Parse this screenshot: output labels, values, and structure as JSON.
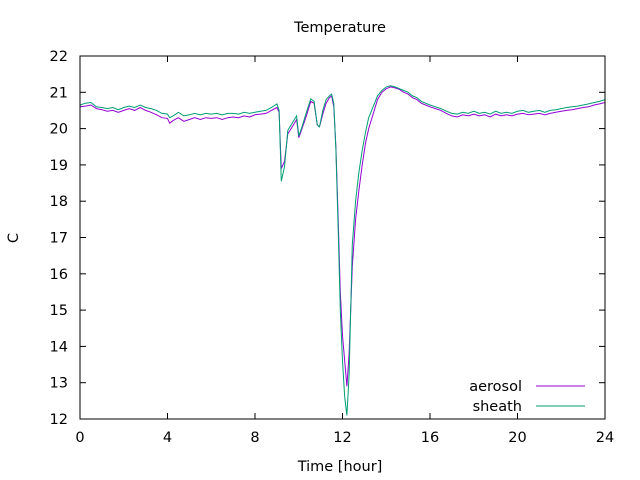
{
  "chart_data": {
    "type": "line",
    "title": "Temperature",
    "xlabel": "Time [hour]",
    "ylabel": "C",
    "xlim": [
      0,
      24
    ],
    "ylim": [
      12,
      22
    ],
    "xticks": [
      0,
      4,
      8,
      12,
      16,
      20,
      24
    ],
    "yticks": [
      12,
      13,
      14,
      15,
      16,
      17,
      18,
      19,
      20,
      21,
      22
    ],
    "grid": false,
    "legend_position": "bottom-right",
    "series": [
      {
        "name": "aerosol",
        "color": "#9400d3",
        "points": [
          [
            0,
            20.6
          ],
          [
            0.25,
            20.62
          ],
          [
            0.5,
            20.65
          ],
          [
            0.75,
            20.55
          ],
          [
            1,
            20.52
          ],
          [
            1.25,
            20.48
          ],
          [
            1.5,
            20.5
          ],
          [
            1.75,
            20.45
          ],
          [
            2,
            20.5
          ],
          [
            2.25,
            20.55
          ],
          [
            2.5,
            20.5
          ],
          [
            2.75,
            20.58
          ],
          [
            3,
            20.5
          ],
          [
            3.25,
            20.45
          ],
          [
            3.5,
            20.38
          ],
          [
            3.75,
            20.3
          ],
          [
            4,
            20.28
          ],
          [
            4.1,
            20.15
          ],
          [
            4.25,
            20.22
          ],
          [
            4.5,
            20.3
          ],
          [
            4.75,
            20.2
          ],
          [
            5,
            20.25
          ],
          [
            5.25,
            20.3
          ],
          [
            5.5,
            20.25
          ],
          [
            5.75,
            20.3
          ],
          [
            6,
            20.28
          ],
          [
            6.25,
            20.3
          ],
          [
            6.5,
            20.25
          ],
          [
            6.75,
            20.3
          ],
          [
            7,
            20.32
          ],
          [
            7.25,
            20.3
          ],
          [
            7.5,
            20.35
          ],
          [
            7.75,
            20.32
          ],
          [
            8,
            20.38
          ],
          [
            8.25,
            20.4
          ],
          [
            8.5,
            20.42
          ],
          [
            8.75,
            20.5
          ],
          [
            9,
            20.58
          ],
          [
            9.1,
            20.45
          ],
          [
            9.2,
            18.9
          ],
          [
            9.35,
            19.1
          ],
          [
            9.5,
            19.85
          ],
          [
            9.75,
            20.1
          ],
          [
            9.9,
            20.25
          ],
          [
            10.0,
            19.75
          ],
          [
            10.15,
            20.0
          ],
          [
            10.35,
            20.35
          ],
          [
            10.55,
            20.75
          ],
          [
            10.7,
            20.7
          ],
          [
            10.85,
            20.1
          ],
          [
            10.95,
            20.05
          ],
          [
            11.1,
            20.4
          ],
          [
            11.25,
            20.7
          ],
          [
            11.4,
            20.85
          ],
          [
            11.5,
            20.9
          ],
          [
            11.6,
            20.6
          ],
          [
            11.7,
            19.5
          ],
          [
            11.8,
            17.6
          ],
          [
            11.9,
            15.5
          ],
          [
            12.0,
            14.3
          ],
          [
            12.1,
            13.6
          ],
          [
            12.2,
            12.9
          ],
          [
            12.3,
            13.8
          ],
          [
            12.45,
            16.2
          ],
          [
            12.6,
            17.5
          ],
          [
            12.75,
            18.3
          ],
          [
            12.9,
            19.0
          ],
          [
            13.05,
            19.6
          ],
          [
            13.2,
            20.0
          ],
          [
            13.4,
            20.4
          ],
          [
            13.6,
            20.8
          ],
          [
            13.8,
            21.0
          ],
          [
            14.0,
            21.1
          ],
          [
            14.2,
            21.15
          ],
          [
            14.4,
            21.12
          ],
          [
            14.6,
            21.08
          ],
          [
            14.8,
            21.0
          ],
          [
            15.0,
            20.95
          ],
          [
            15.2,
            20.85
          ],
          [
            15.4,
            20.8
          ],
          [
            15.6,
            20.7
          ],
          [
            15.8,
            20.65
          ],
          [
            16.0,
            20.6
          ],
          [
            16.25,
            20.55
          ],
          [
            16.5,
            20.5
          ],
          [
            16.75,
            20.42
          ],
          [
            17.0,
            20.35
          ],
          [
            17.25,
            20.32
          ],
          [
            17.5,
            20.38
          ],
          [
            17.75,
            20.35
          ],
          [
            18.0,
            20.4
          ],
          [
            18.25,
            20.35
          ],
          [
            18.5,
            20.38
          ],
          [
            18.75,
            20.32
          ],
          [
            19.0,
            20.4
          ],
          [
            19.25,
            20.35
          ],
          [
            19.5,
            20.38
          ],
          [
            19.75,
            20.35
          ],
          [
            20.0,
            20.4
          ],
          [
            20.25,
            20.42
          ],
          [
            20.5,
            20.38
          ],
          [
            20.75,
            20.4
          ],
          [
            21.0,
            20.42
          ],
          [
            21.25,
            20.38
          ],
          [
            21.5,
            20.42
          ],
          [
            21.75,
            20.45
          ],
          [
            22.0,
            20.48
          ],
          [
            22.25,
            20.5
          ],
          [
            22.5,
            20.52
          ],
          [
            22.75,
            20.55
          ],
          [
            23.0,
            20.58
          ],
          [
            23.25,
            20.6
          ],
          [
            23.5,
            20.65
          ],
          [
            23.75,
            20.68
          ],
          [
            24.0,
            20.72
          ]
        ]
      },
      {
        "name": "sheath",
        "color": "#009e73",
        "points": [
          [
            0,
            20.65
          ],
          [
            0.25,
            20.7
          ],
          [
            0.5,
            20.72
          ],
          [
            0.75,
            20.6
          ],
          [
            1,
            20.58
          ],
          [
            1.25,
            20.55
          ],
          [
            1.5,
            20.58
          ],
          [
            1.75,
            20.52
          ],
          [
            2,
            20.58
          ],
          [
            2.25,
            20.62
          ],
          [
            2.5,
            20.58
          ],
          [
            2.75,
            20.65
          ],
          [
            3,
            20.58
          ],
          [
            3.25,
            20.55
          ],
          [
            3.5,
            20.5
          ],
          [
            3.75,
            20.42
          ],
          [
            4,
            20.4
          ],
          [
            4.1,
            20.3
          ],
          [
            4.25,
            20.35
          ],
          [
            4.5,
            20.45
          ],
          [
            4.75,
            20.35
          ],
          [
            5,
            20.38
          ],
          [
            5.25,
            20.42
          ],
          [
            5.5,
            20.38
          ],
          [
            5.75,
            20.42
          ],
          [
            6,
            20.4
          ],
          [
            6.25,
            20.42
          ],
          [
            6.5,
            20.38
          ],
          [
            6.75,
            20.42
          ],
          [
            7,
            20.42
          ],
          [
            7.25,
            20.4
          ],
          [
            7.5,
            20.45
          ],
          [
            7.75,
            20.42
          ],
          [
            8,
            20.45
          ],
          [
            8.25,
            20.48
          ],
          [
            8.5,
            20.5
          ],
          [
            8.75,
            20.58
          ],
          [
            9,
            20.68
          ],
          [
            9.1,
            20.5
          ],
          [
            9.2,
            18.55
          ],
          [
            9.35,
            18.95
          ],
          [
            9.5,
            19.95
          ],
          [
            9.75,
            20.2
          ],
          [
            9.9,
            20.35
          ],
          [
            10.0,
            19.8
          ],
          [
            10.15,
            20.05
          ],
          [
            10.35,
            20.45
          ],
          [
            10.55,
            20.82
          ],
          [
            10.7,
            20.75
          ],
          [
            10.85,
            20.1
          ],
          [
            10.95,
            20.05
          ],
          [
            11.1,
            20.5
          ],
          [
            11.25,
            20.8
          ],
          [
            11.4,
            20.9
          ],
          [
            11.5,
            20.95
          ],
          [
            11.6,
            20.7
          ],
          [
            11.7,
            19.4
          ],
          [
            11.8,
            17.3
          ],
          [
            11.9,
            15.0
          ],
          [
            12.0,
            13.6
          ],
          [
            12.1,
            12.6
          ],
          [
            12.2,
            12.1
          ],
          [
            12.3,
            13.2
          ],
          [
            12.45,
            16.8
          ],
          [
            12.6,
            18.0
          ],
          [
            12.75,
            18.8
          ],
          [
            12.9,
            19.4
          ],
          [
            13.05,
            19.9
          ],
          [
            13.2,
            20.3
          ],
          [
            13.4,
            20.6
          ],
          [
            13.6,
            20.9
          ],
          [
            13.8,
            21.05
          ],
          [
            14.0,
            21.15
          ],
          [
            14.2,
            21.18
          ],
          [
            14.4,
            21.15
          ],
          [
            14.6,
            21.1
          ],
          [
            14.8,
            21.05
          ],
          [
            15.0,
            21.0
          ],
          [
            15.2,
            20.9
          ],
          [
            15.4,
            20.85
          ],
          [
            15.6,
            20.75
          ],
          [
            15.8,
            20.7
          ],
          [
            16.0,
            20.65
          ],
          [
            16.25,
            20.6
          ],
          [
            16.5,
            20.55
          ],
          [
            16.75,
            20.48
          ],
          [
            17.0,
            20.42
          ],
          [
            17.25,
            20.4
          ],
          [
            17.5,
            20.45
          ],
          [
            17.75,
            20.42
          ],
          [
            18.0,
            20.48
          ],
          [
            18.25,
            20.42
          ],
          [
            18.5,
            20.45
          ],
          [
            18.75,
            20.4
          ],
          [
            19.0,
            20.48
          ],
          [
            19.25,
            20.42
          ],
          [
            19.5,
            20.45
          ],
          [
            19.75,
            20.42
          ],
          [
            20.0,
            20.48
          ],
          [
            20.25,
            20.5
          ],
          [
            20.5,
            20.45
          ],
          [
            20.75,
            20.48
          ],
          [
            21.0,
            20.5
          ],
          [
            21.25,
            20.45
          ],
          [
            21.5,
            20.5
          ],
          [
            21.75,
            20.52
          ],
          [
            22.0,
            20.55
          ],
          [
            22.25,
            20.58
          ],
          [
            22.5,
            20.6
          ],
          [
            22.75,
            20.62
          ],
          [
            23.0,
            20.65
          ],
          [
            23.25,
            20.68
          ],
          [
            23.5,
            20.72
          ],
          [
            23.75,
            20.75
          ],
          [
            24.0,
            20.8
          ]
        ]
      }
    ]
  }
}
